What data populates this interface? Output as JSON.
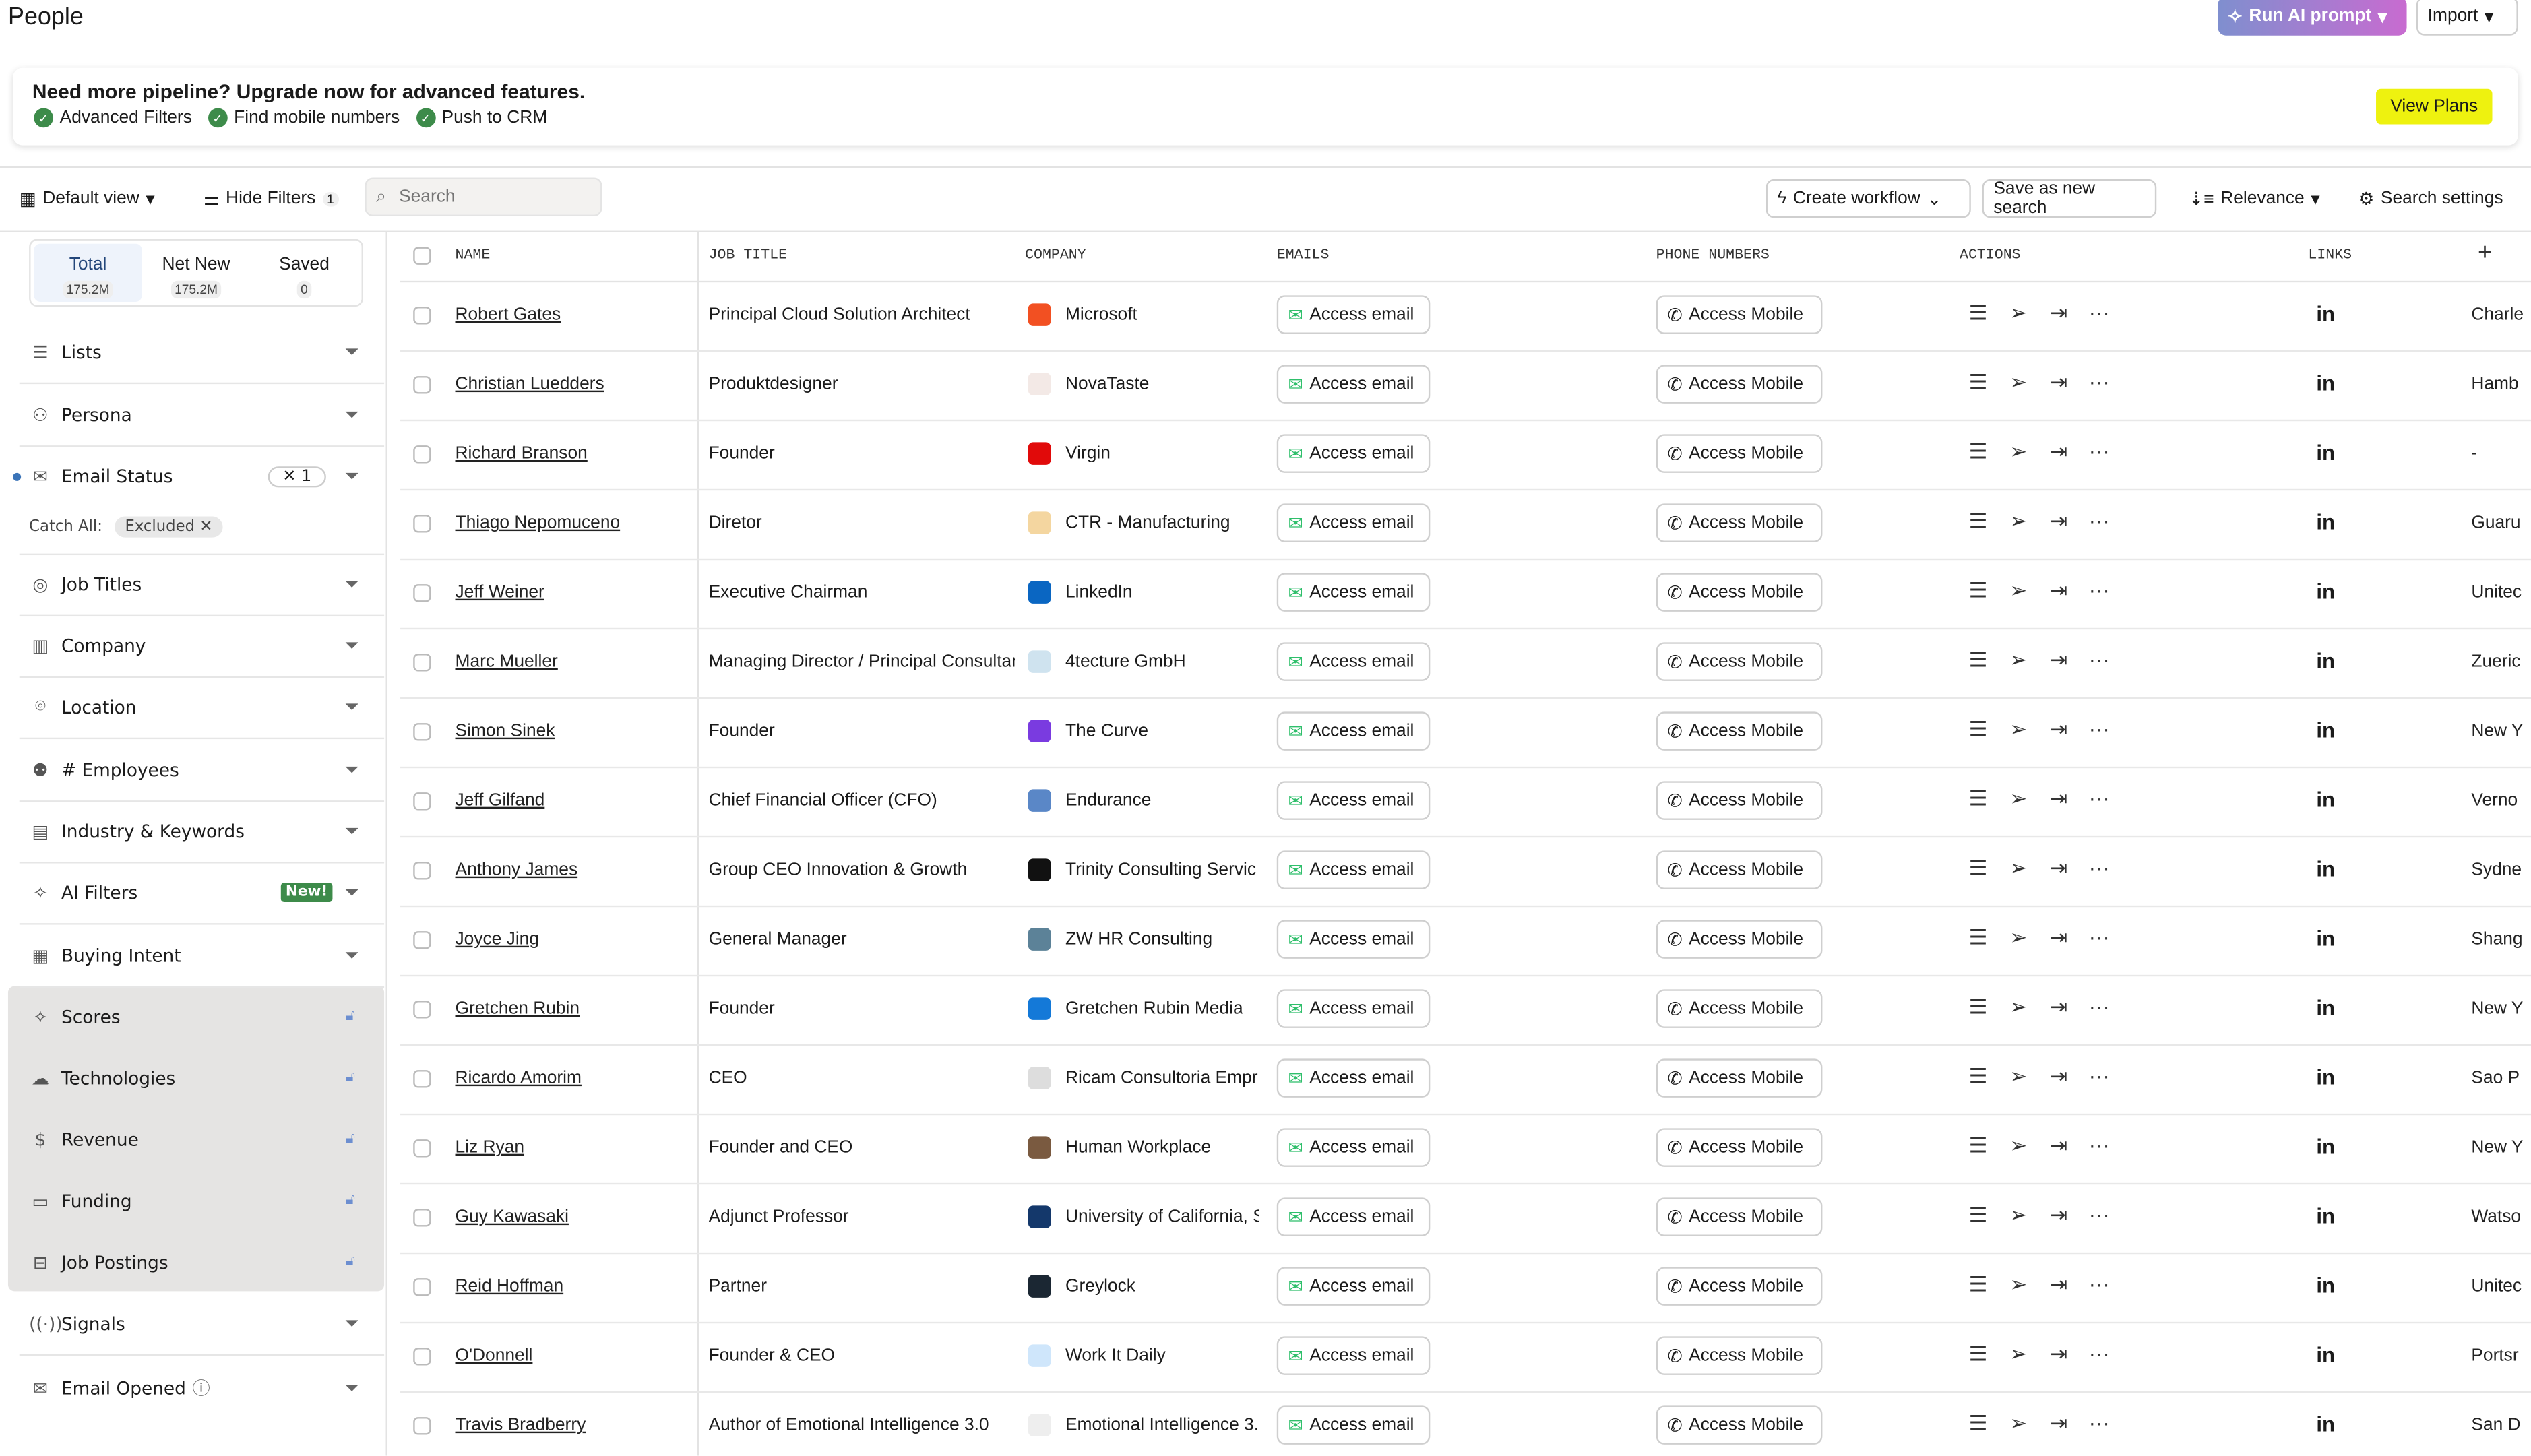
{
  "header": {
    "title": "People",
    "run_ai": "Run AI prompt",
    "import": "Import"
  },
  "banner": {
    "heading": "Need more pipeline? Upgrade now for advanced features.",
    "features": [
      "Advanced Filters",
      "Find mobile numbers",
      "Push to CRM"
    ],
    "cta": "View Plans",
    "cta_color": "#eef20f"
  },
  "toolbar": {
    "view": "Default view",
    "hide_filters": "Hide Filters",
    "filter_count": "1",
    "search_placeholder": "Search",
    "create_workflow": "Create workflow",
    "save_search": "Save as new search",
    "sort": "Relevance",
    "settings": "Search settings"
  },
  "sidebar": {
    "tabs": [
      {
        "label": "Total",
        "count": "175.2M"
      },
      {
        "label": "Net New",
        "count": "175.2M"
      },
      {
        "label": "Saved",
        "count": "0"
      }
    ],
    "filters": [
      {
        "label": "Lists",
        "icon": "list-icon"
      },
      {
        "label": "Persona",
        "icon": "persona-icon"
      },
      {
        "label": "Email Status",
        "icon": "email-status-icon",
        "count": "1",
        "active": true
      },
      {
        "label": "Job Titles",
        "icon": "badge-icon"
      },
      {
        "label": "Company",
        "icon": "building-icon"
      },
      {
        "label": "Location",
        "icon": "location-icon"
      },
      {
        "label": "# Employees",
        "icon": "people-icon"
      },
      {
        "label": "Industry & Keywords",
        "icon": "industry-icon"
      },
      {
        "label": "AI Filters",
        "icon": "sparkle-icon",
        "badge": "New!"
      },
      {
        "label": "Buying Intent",
        "icon": "chart-icon"
      },
      {
        "label": "Scores",
        "icon": "scores-icon",
        "locked": true
      },
      {
        "label": "Technologies",
        "icon": "cloud-icon",
        "locked": true
      },
      {
        "label": "Revenue",
        "icon": "dollar-icon",
        "locked": true
      },
      {
        "label": "Funding",
        "icon": "money-icon",
        "locked": true
      },
      {
        "label": "Job Postings",
        "icon": "briefcase-icon",
        "locked": true
      },
      {
        "label": "Signals",
        "icon": "signal-icon"
      },
      {
        "label": "Email Opened",
        "icon": "envelope-open-icon",
        "help": true
      }
    ],
    "catch_all": {
      "label": "Catch All:",
      "value": "Excluded"
    }
  },
  "table": {
    "columns": [
      "NAME",
      "JOB TITLE",
      "COMPANY",
      "EMAILS",
      "PHONE NUMBERS",
      "ACTIONS",
      "LINKS"
    ],
    "email_button": "Access email",
    "mobile_button": "Access Mobile",
    "linkedin": "in",
    "rows": [
      {
        "name": "Robert Gates",
        "title": "Principal Cloud Solution Architect",
        "company": "Microsoft",
        "logo_color": "#f25022",
        "location": "Charle"
      },
      {
        "name": "Christian Luedders",
        "title": "Produktdesigner",
        "company": "NovaTaste",
        "logo_color": "#f3e9e6",
        "location": "Hamb"
      },
      {
        "name": "Richard Branson",
        "title": "Founder",
        "company": "Virgin",
        "logo_color": "#e10a0a",
        "location": "-"
      },
      {
        "name": "Thiago Nepomuceno",
        "title": "Diretor",
        "company": "CTR - Manufacturing",
        "logo_color": "#f4d6a0",
        "location": "Guaru"
      },
      {
        "name": "Jeff Weiner",
        "title": "Executive Chairman",
        "company": "LinkedIn",
        "logo_color": "#0a66c2",
        "location": "Unitec"
      },
      {
        "name": "Marc Mueller",
        "title": "Managing Director / Principal Consultant",
        "company": "4tecture GmbH",
        "logo_color": "#cfe3ef",
        "location": "Zueric"
      },
      {
        "name": "Simon Sinek",
        "title": "Founder",
        "company": "The Curve",
        "logo_color": "#7a3be0",
        "location": "New Y"
      },
      {
        "name": "Jeff Gilfand",
        "title": "Chief Financial Officer (CFO)",
        "company": "Endurance",
        "logo_color": "#5a87c7",
        "location": "Verno"
      },
      {
        "name": "Anthony James",
        "title": "Group CEO Innovation & Growth",
        "company": "Trinity Consulting Servic",
        "logo_color": "#111111",
        "location": "Sydne"
      },
      {
        "name": "Joyce Jing",
        "title": "General Manager",
        "company": "ZW HR Consulting",
        "logo_color": "#5c8298",
        "location": "Shang"
      },
      {
        "name": "Gretchen Rubin",
        "title": "Founder",
        "company": "Gretchen Rubin Media",
        "logo_color": "#1479d8",
        "location": "New Y"
      },
      {
        "name": "Ricardo Amorim",
        "title": "CEO",
        "company": "Ricam Consultoria Empr",
        "logo_color": "#dddddd",
        "location": "Sao P"
      },
      {
        "name": "Liz Ryan",
        "title": "Founder and CEO",
        "company": "Human Workplace",
        "logo_color": "#7a5a40",
        "location": "New Y"
      },
      {
        "name": "Guy Kawasaki",
        "title": "Adjunct Professor",
        "company": "University of California, S",
        "logo_color": "#14386b",
        "location": "Watso"
      },
      {
        "name": "Reid Hoffman",
        "title": "Partner",
        "company": "Greylock",
        "logo_color": "#1b2733",
        "location": "Unitec"
      },
      {
        "name": "O'Donnell",
        "title": "Founder & CEO",
        "company": "Work It Daily",
        "logo_color": "#cfe6fb",
        "location": "Portsr"
      },
      {
        "name": "Travis Bradberry",
        "title": "Author of Emotional Intelligence 3.0",
        "company": "Emotional Intelligence 3.",
        "logo_color": "#eeeeee",
        "location": "San D"
      }
    ]
  }
}
